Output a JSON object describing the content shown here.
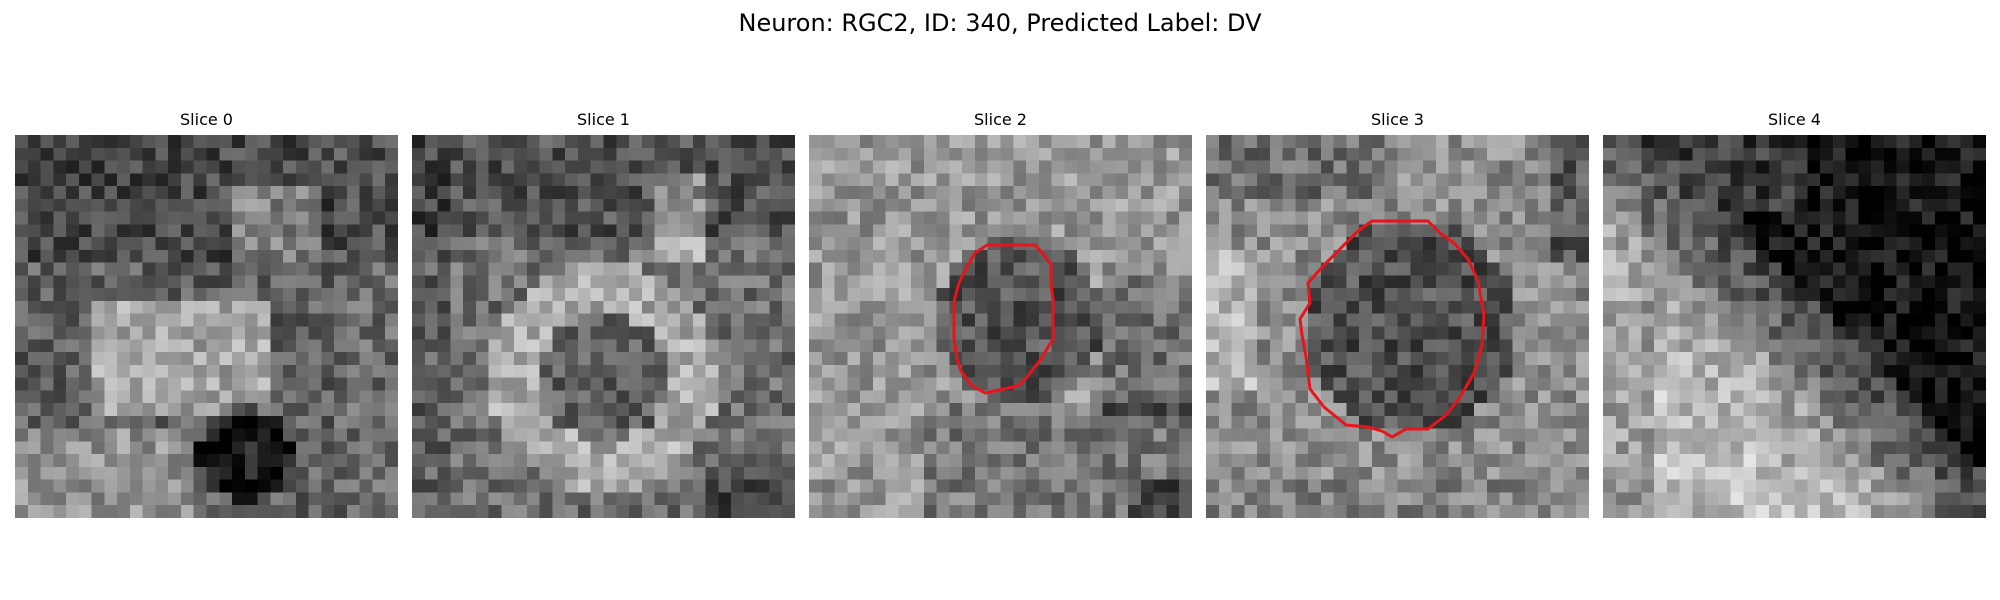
{
  "figure": {
    "title": "Neuron: RGC2, ID: 340, Predicted Label: DV"
  },
  "panels": [
    {
      "title": "Slice 0",
      "has_contour": false,
      "contour_color": "#e8141b"
    },
    {
      "title": "Slice 1",
      "has_contour": false,
      "contour_color": "#e8141b"
    },
    {
      "title": "Slice 2",
      "has_contour": true,
      "contour_color": "#e8141b"
    },
    {
      "title": "Slice 3",
      "has_contour": true,
      "contour_color": "#e8141b"
    },
    {
      "title": "Slice 4",
      "has_contour": false,
      "contour_color": "#e8141b"
    }
  ],
  "image_style": {
    "colormap": "grayscale"
  }
}
